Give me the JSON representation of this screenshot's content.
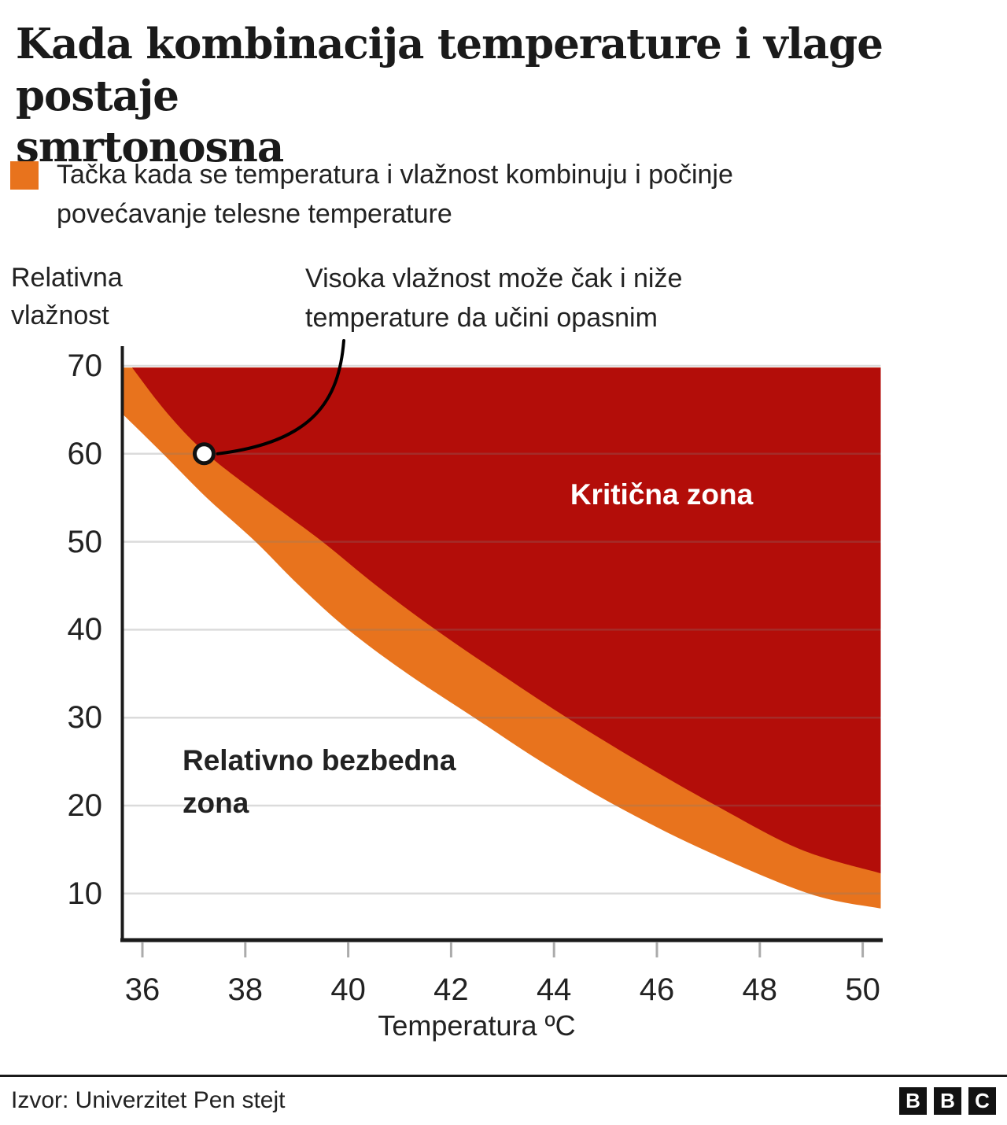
{
  "title": {
    "line1": "Kada kombinacija temperature i vlage postaje",
    "line2": "smrtonosna"
  },
  "legend": {
    "swatch_color": "#e8731d",
    "line1": "Tačka kada se temperatura i vlažnost kombinuju i počinje",
    "line2": "povećavanje telesne temperature"
  },
  "annotation": {
    "line1": "Visoka vlažnost može čak i niže",
    "line2": "temperature da učini opasnim",
    "point": {
      "temperature": 37.2,
      "humidity": 60
    }
  },
  "chart_data": {
    "type": "area",
    "xlabel": "Temperatura ºC",
    "ylabel": "Relativna vlažnost",
    "x_ticks": [
      36,
      38,
      40,
      42,
      44,
      46,
      48,
      50
    ],
    "y_ticks": [
      70,
      60,
      50,
      40,
      30,
      20,
      10
    ],
    "xlim": [
      35.6,
      50.35
    ],
    "ylim": [
      4.6,
      72.2
    ],
    "grid": "horizontal",
    "zones": {
      "critical": "Kritična zona",
      "safe": "Relativno bezbedna zona"
    },
    "colors": {
      "critical_zone": "#b30d09",
      "threshold_band": "#e8731d",
      "gridline": "rgba(125,125,125,0.28)",
      "axis": "#1a1a1a",
      "tick": "#ababab"
    },
    "series": [
      {
        "name": "granica kritične zone (početak porasta telesne temperature)",
        "points": [
          [
            35.8,
            69.8
          ],
          [
            36.5,
            64.5
          ],
          [
            37.25,
            60
          ],
          [
            38.35,
            55
          ],
          [
            39.5,
            50
          ],
          [
            40.55,
            45
          ],
          [
            41.7,
            40
          ],
          [
            42.95,
            35
          ],
          [
            44.25,
            30
          ],
          [
            45.65,
            25
          ],
          [
            47.15,
            20
          ],
          [
            48.8,
            15
          ],
          [
            50.35,
            12.3
          ]
        ]
      },
      {
        "name": "granica relativno bezbedne zone",
        "points": [
          [
            35.6,
            64.6
          ],
          [
            36.4,
            60
          ],
          [
            37.25,
            55
          ],
          [
            38.2,
            50
          ],
          [
            39.05,
            45
          ],
          [
            40.0,
            40
          ],
          [
            41.15,
            35
          ],
          [
            42.45,
            30
          ],
          [
            43.75,
            25
          ],
          [
            45.2,
            20
          ],
          [
            46.9,
            15
          ],
          [
            48.95,
            10
          ],
          [
            50.35,
            8.3
          ]
        ]
      }
    ]
  },
  "footer": {
    "source": "Izvor: Univerzitet Pen stejt",
    "logo": [
      "B",
      "B",
      "C"
    ]
  }
}
